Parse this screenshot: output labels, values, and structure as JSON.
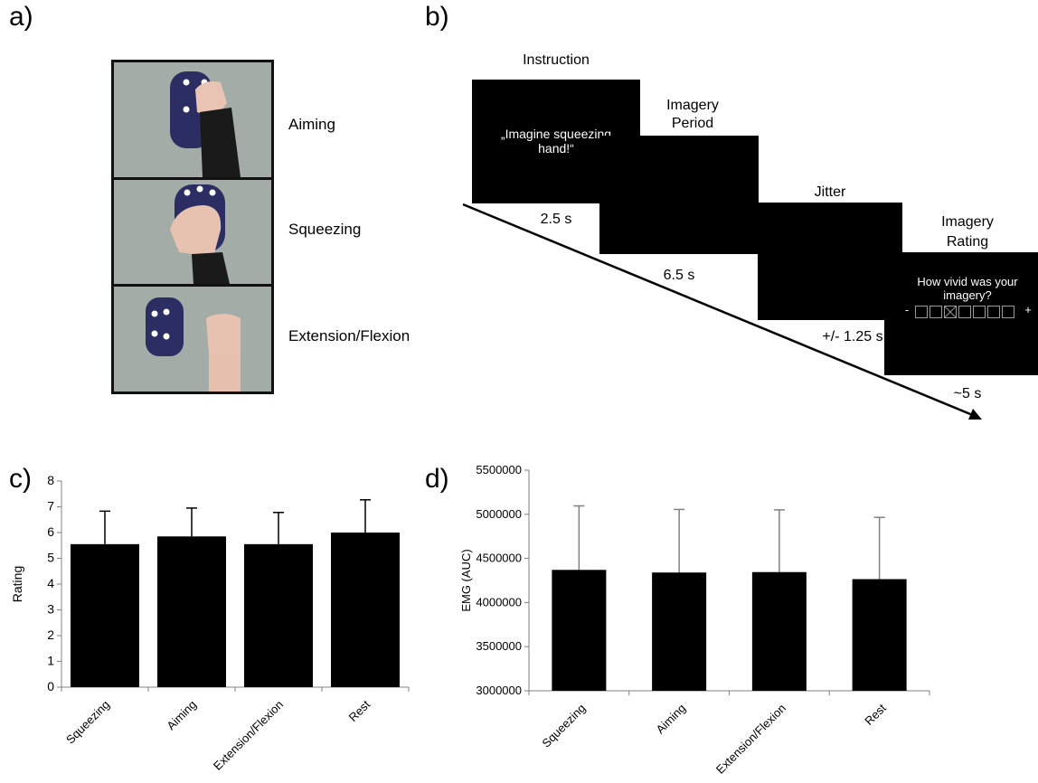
{
  "panels": {
    "a": "a)",
    "b": "b)",
    "c": "c)",
    "d": "d)"
  },
  "panel_a": {
    "conditions": [
      "Aiming",
      "Squeezing",
      "Extension/Flexion"
    ]
  },
  "panel_b": {
    "stages": [
      {
        "title": "Instruction",
        "screen_text": "„Imagine squeezing hand!“",
        "duration": "2.5 s"
      },
      {
        "title_line1": "Imagery",
        "title_line2": "Period",
        "duration": "6.5 s"
      },
      {
        "title": "Jitter",
        "duration": "+/- 1.25 s"
      },
      {
        "title_line1": "Imagery",
        "title_line2": "Rating",
        "screen_text": "How vivid was your imagery?",
        "scale_minus": "-",
        "scale_plus": "+",
        "duration": "~5 s"
      }
    ],
    "colors": {
      "screen": "#000000",
      "text": "#ffffff"
    }
  },
  "chart_data": [
    {
      "type": "bar",
      "categories": [
        "Squeezing",
        "Aiming",
        "Extension/Flexion",
        "Rest"
      ],
      "values": [
        5.55,
        5.85,
        5.55,
        6.0
      ],
      "errors": [
        1.28,
        1.1,
        1.23,
        1.27
      ],
      "xlabel": "",
      "ylabel": "Rating",
      "ylim": [
        0,
        8
      ],
      "yticks": [
        "0",
        "1",
        "2",
        "3",
        "4",
        "5",
        "6",
        "7",
        "8"
      ],
      "bar_color": "#000000",
      "grid": false
    },
    {
      "type": "bar",
      "categories": [
        "Squeezing",
        "Aiming",
        "Extension/Flexion",
        "Rest"
      ],
      "values": [
        4370000,
        4340000,
        4345000,
        4265000
      ],
      "errors": [
        725000,
        715000,
        705000,
        700000
      ],
      "xlabel": "",
      "ylabel": "EMG (AUC)",
      "ylim": [
        3000000,
        5500000
      ],
      "yticks": [
        "3000000",
        "3500000",
        "4000000",
        "4500000",
        "5000000",
        "5500000"
      ],
      "bar_color": "#000000",
      "grid": false
    }
  ]
}
